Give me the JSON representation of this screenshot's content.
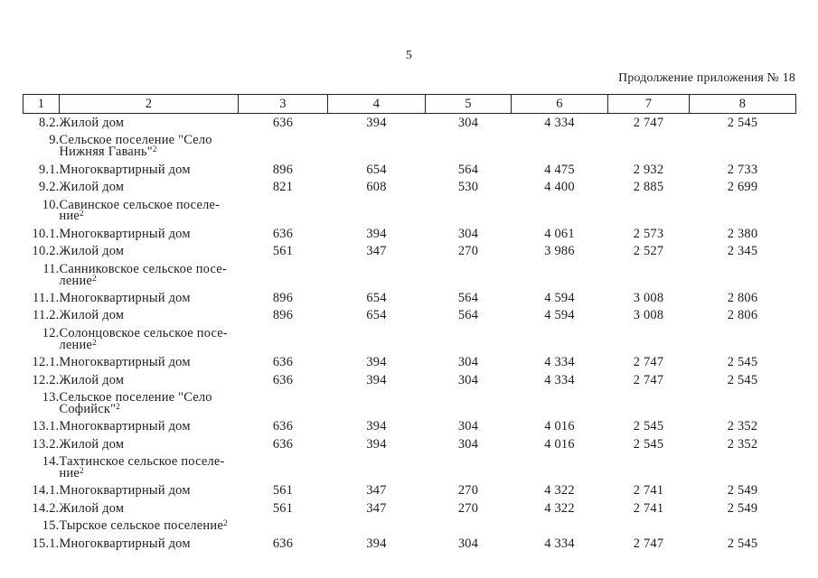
{
  "page": {
    "number": "5",
    "continuation_note": "Продолжение приложения № 18"
  },
  "table": {
    "column_headers": [
      "1",
      "2",
      "3",
      "4",
      "5",
      "6",
      "7",
      "8"
    ],
    "rows": [
      {
        "num": "8.2.",
        "name": "Жилой дом",
        "sup": "",
        "values": [
          "636",
          "394",
          "304",
          "4 334",
          "2 747",
          "2 545"
        ]
      },
      {
        "num": "9.",
        "name": "Сельское поселение \"Село\nНижняя Гавань\"",
        "sup": "2",
        "values": [
          "",
          "",
          "",
          "",
          "",
          ""
        ]
      },
      {
        "num": "9.1.",
        "name": "Многоквартирный дом",
        "sup": "",
        "values": [
          "896",
          "654",
          "564",
          "4 475",
          "2 932",
          "2 733"
        ]
      },
      {
        "num": "9.2.",
        "name": "Жилой дом",
        "sup": "",
        "values": [
          "821",
          "608",
          "530",
          "4 400",
          "2 885",
          "2 699"
        ]
      },
      {
        "num": "10.",
        "name": "Савинское сельское поселе-\nние",
        "sup": "2",
        "values": [
          "",
          "",
          "",
          "",
          "",
          ""
        ]
      },
      {
        "num": "10.1.",
        "name": "Многоквартирный дом",
        "sup": "",
        "values": [
          "636",
          "394",
          "304",
          "4 061",
          "2 573",
          "2 380"
        ]
      },
      {
        "num": "10.2.",
        "name": "Жилой дом",
        "sup": "",
        "values": [
          "561",
          "347",
          "270",
          "3 986",
          "2 527",
          "2 345"
        ]
      },
      {
        "num": "11.",
        "name": "Санниковское сельское посе-\nление",
        "sup": "2",
        "values": [
          "",
          "",
          "",
          "",
          "",
          ""
        ]
      },
      {
        "num": "11.1.",
        "name": "Многоквартирный дом",
        "sup": "",
        "values": [
          "896",
          "654",
          "564",
          "4 594",
          "3 008",
          "2 806"
        ]
      },
      {
        "num": "11.2.",
        "name": "Жилой дом",
        "sup": "",
        "values": [
          "896",
          "654",
          "564",
          "4 594",
          "3 008",
          "2 806"
        ]
      },
      {
        "num": "12.",
        "name": "Солонцовское сельское посе-\nление",
        "sup": "2",
        "values": [
          "",
          "",
          "",
          "",
          "",
          ""
        ]
      },
      {
        "num": "12.1.",
        "name": "Многоквартирный дом",
        "sup": "",
        "values": [
          "636",
          "394",
          "304",
          "4 334",
          "2 747",
          "2 545"
        ]
      },
      {
        "num": "12.2.",
        "name": "Жилой дом",
        "sup": "",
        "values": [
          "636",
          "394",
          "304",
          "4 334",
          "2 747",
          "2 545"
        ]
      },
      {
        "num": "13.",
        "name": "Сельское поселение \"Село\nСофийск\"",
        "sup": "2",
        "values": [
          "",
          "",
          "",
          "",
          "",
          ""
        ]
      },
      {
        "num": "13.1.",
        "name": "Многоквартирный дом",
        "sup": "",
        "values": [
          "636",
          "394",
          "304",
          "4 016",
          "2 545",
          "2 352"
        ]
      },
      {
        "num": "13.2.",
        "name": "Жилой дом",
        "sup": "",
        "values": [
          "636",
          "394",
          "304",
          "4 016",
          "2 545",
          "2 352"
        ]
      },
      {
        "num": "14.",
        "name": "Тахтинское сельское поселе-\nние",
        "sup": "2",
        "values": [
          "",
          "",
          "",
          "",
          "",
          ""
        ]
      },
      {
        "num": "14.1.",
        "name": "Многоквартирный дом",
        "sup": "",
        "values": [
          "561",
          "347",
          "270",
          "4 322",
          "2 741",
          "2 549"
        ]
      },
      {
        "num": "14.2.",
        "name": "Жилой дом",
        "sup": "",
        "values": [
          "561",
          "347",
          "270",
          "4 322",
          "2 741",
          "2 549"
        ]
      },
      {
        "num": "15.",
        "name": "Тырское сельское поселение",
        "sup": "2",
        "values": [
          "",
          "",
          "",
          "",
          "",
          ""
        ]
      },
      {
        "num": "15.1.",
        "name": "Многоквартирный дом",
        "sup": "",
        "values": [
          "636",
          "394",
          "304",
          "4 334",
          "2 747",
          "2 545"
        ]
      }
    ]
  }
}
